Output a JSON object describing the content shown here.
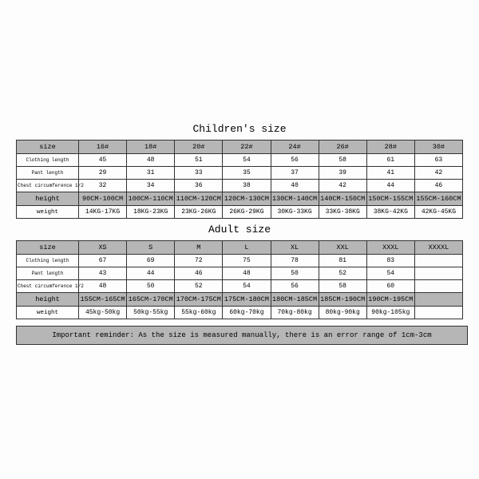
{
  "children": {
    "title": "Children's size",
    "colLabel": "size",
    "sizes": [
      "16#",
      "18#",
      "20#",
      "22#",
      "24#",
      "26#",
      "28#",
      "30#"
    ],
    "rows": [
      {
        "label": "Clothing length",
        "small": true,
        "cells": [
          "45",
          "48",
          "51",
          "54",
          "56",
          "58",
          "61",
          "63"
        ]
      },
      {
        "label": "Pant length",
        "small": true,
        "cells": [
          "29",
          "31",
          "33",
          "35",
          "37",
          "39",
          "41",
          "42"
        ]
      },
      {
        "label": "Chest circumference 1/2",
        "small": true,
        "cells": [
          "32",
          "34",
          "36",
          "38",
          "40",
          "42",
          "44",
          "46"
        ]
      },
      {
        "label": "height",
        "small": false,
        "cells": [
          "90CM-100CM",
          "100CM-110CM",
          "110CM-120CM",
          "120CM-130CM",
          "130CM-140CM",
          "140CM-150CM",
          "150CM-155CM",
          "155CM-160CM"
        ]
      },
      {
        "label": "weight",
        "small": false,
        "cells": [
          "14KG-17KG",
          "18KG-23KG",
          "23KG-26KG",
          "26KG-29KG",
          "30KG-33KG",
          "33KG-38KG",
          "38KG-42KG",
          "42KG-45KG"
        ]
      }
    ]
  },
  "adult": {
    "title": "Adult size",
    "colLabel": "size",
    "sizes": [
      "XS",
      "S",
      "M",
      "L",
      "XL",
      "XXL",
      "XXXL",
      "XXXXL"
    ],
    "rows": [
      {
        "label": "Clothing length",
        "small": true,
        "cells": [
          "67",
          "69",
          "72",
          "75",
          "78",
          "81",
          "83",
          ""
        ]
      },
      {
        "label": "Pant length",
        "small": true,
        "cells": [
          "43",
          "44",
          "46",
          "48",
          "50",
          "52",
          "54",
          ""
        ]
      },
      {
        "label": "Chest circumference 1/2",
        "small": true,
        "cells": [
          "48",
          "50",
          "52",
          "54",
          "56",
          "58",
          "60",
          ""
        ]
      },
      {
        "label": "height",
        "small": false,
        "cells": [
          "155CM-165CM",
          "165CM-170CM",
          "170CM-175CM",
          "175CM-180CM",
          "180CM-185CM",
          "185CM-190CM",
          "190CM-195CM",
          ""
        ]
      },
      {
        "label": "weight",
        "small": false,
        "cells": [
          "45kg-50kg",
          "50kg-55kg",
          "55kg-60kg",
          "60kg-70kg",
          "70kg-80kg",
          "80kg-90kg",
          "90kg-105kg",
          ""
        ]
      }
    ]
  },
  "reminder": "Important reminder: As the size is measured manually, there is an error range of 1cm-3cm",
  "style": {
    "header_bg": "#b6b6b6",
    "border_color": "#333333",
    "font_family": "Courier New",
    "title_fontsize": 13,
    "cell_fontsize": 8,
    "small_label_fontsize": 6
  }
}
